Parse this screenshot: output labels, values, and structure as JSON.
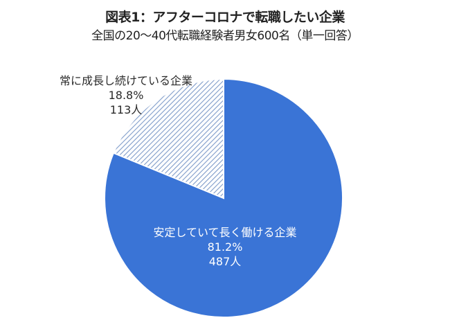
{
  "title": "図表1：アフターコロナで転職したい企業",
  "subtitle": "全国の20～40代転職経験者男女600名（単一回答）",
  "colors": {
    "primary_slice": "#3A74D6",
    "hatch_line": "#7E9BC9",
    "background": "#FFFFFF"
  },
  "slices": [
    {
      "label": "安定していて長く働ける企業",
      "percent": "81.2%",
      "count": "487人"
    },
    {
      "label": "常に成長し続けている企業",
      "percent": "18.8%",
      "count": "113人"
    }
  ],
  "chart_data": {
    "type": "pie",
    "title": "図表1：アフターコロナで転職したい企業",
    "subtitle": "全国の20～40代転職経験者男女600名（単一回答）",
    "categories": [
      "安定していて長く働ける企業",
      "常に成長し続けている企業"
    ],
    "values": [
      81.2,
      18.8
    ],
    "counts": [
      487,
      113
    ],
    "total": 600,
    "units": "%",
    "start_angle": "12 o'clock, clockwise",
    "styles": [
      "solid blue",
      "diagonal hatch"
    ],
    "legend": "none (direct labels)"
  }
}
